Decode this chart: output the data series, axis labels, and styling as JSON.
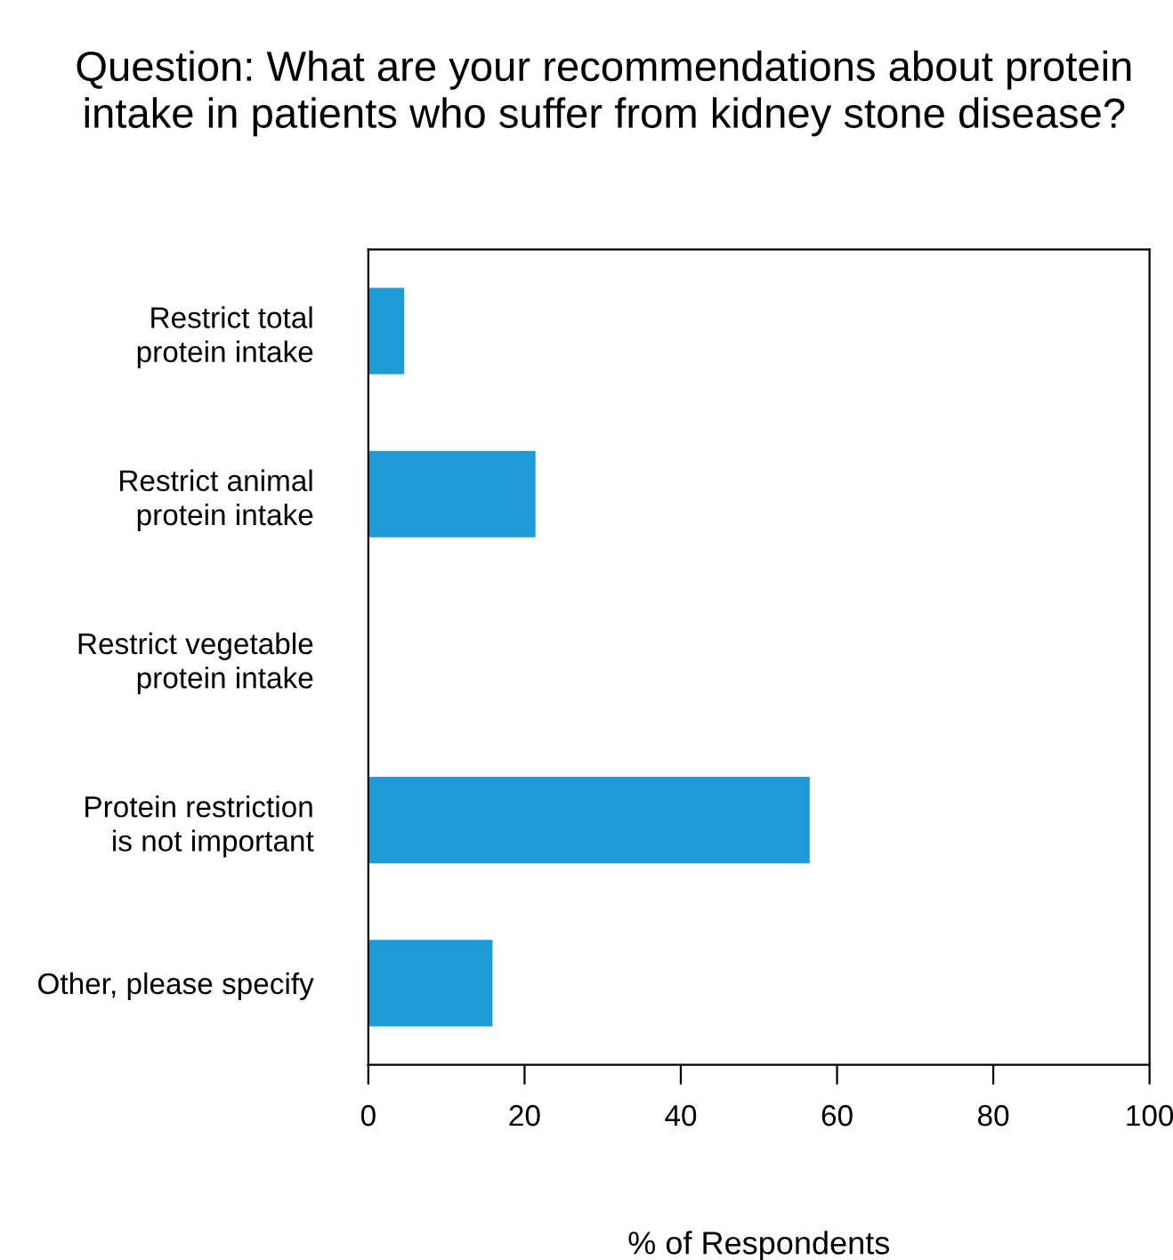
{
  "chart_data": {
    "type": "bar",
    "orientation": "horizontal",
    "title": "Question: What are your recommendations about protein intake in patients who suffer from kidney stone disease?",
    "categories": [
      "Restrict total\nprotein intake",
      "Restrict animal\nprotein intake",
      "Restrict vegetable\nprotein intake",
      "Protein restriction\nis not important",
      "Other, please specify"
    ],
    "values": [
      4.6,
      21.4,
      0,
      56.5,
      15.9
    ],
    "color": "#1e9ad6",
    "xlim": [
      0,
      100
    ],
    "xticks": [
      0,
      20,
      40,
      60,
      80,
      100
    ],
    "xlabel": "% of Respondents",
    "grid": false
  }
}
